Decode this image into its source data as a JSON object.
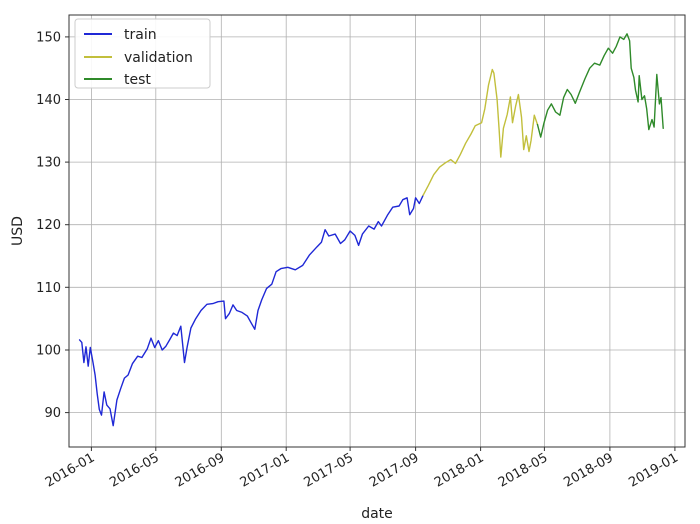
{
  "chart_data": {
    "type": "line",
    "title": "",
    "xlabel": "date",
    "ylabel": "USD",
    "x_axis_type": "date",
    "xlim": [
      "2015-11-20",
      "2019-01-20"
    ],
    "ylim": [
      84.5,
      153.5
    ],
    "grid": true,
    "legend_position": "top-left",
    "x_ticks": [
      "2016-01",
      "2016-05",
      "2016-09",
      "2017-01",
      "2017-05",
      "2017-09",
      "2018-01",
      "2018-05",
      "2018-09",
      "2019-01"
    ],
    "y_ticks": [
      90,
      100,
      110,
      120,
      130,
      140,
      150
    ],
    "series": [
      {
        "name": "train",
        "color": "#1f28d6",
        "points": [
          [
            "2015-12-10",
            101.6
          ],
          [
            "2015-12-14",
            101.2
          ],
          [
            "2015-12-18",
            98.0
          ],
          [
            "2015-12-22",
            100.5
          ],
          [
            "2015-12-26",
            97.4
          ],
          [
            "2015-12-30",
            100.4
          ],
          [
            "2016-01-04",
            98.0
          ],
          [
            "2016-01-08",
            96.0
          ],
          [
            "2016-01-12",
            93.0
          ],
          [
            "2016-01-16",
            90.5
          ],
          [
            "2016-01-20",
            89.6
          ],
          [
            "2016-01-25",
            93.3
          ],
          [
            "2016-01-30",
            91.2
          ],
          [
            "2016-02-05",
            90.6
          ],
          [
            "2016-02-11",
            87.9
          ],
          [
            "2016-02-18",
            92.0
          ],
          [
            "2016-02-25",
            93.8
          ],
          [
            "2016-03-03",
            95.5
          ],
          [
            "2016-03-10",
            96.0
          ],
          [
            "2016-03-18",
            97.8
          ],
          [
            "2016-03-28",
            99.0
          ],
          [
            "2016-04-05",
            98.8
          ],
          [
            "2016-04-15",
            100.2
          ],
          [
            "2016-04-22",
            101.9
          ],
          [
            "2016-04-29",
            100.4
          ],
          [
            "2016-05-06",
            101.5
          ],
          [
            "2016-05-13",
            100.0
          ],
          [
            "2016-05-20",
            100.6
          ],
          [
            "2016-05-27",
            101.6
          ],
          [
            "2016-06-03",
            102.7
          ],
          [
            "2016-06-10",
            102.3
          ],
          [
            "2016-06-17",
            103.8
          ],
          [
            "2016-06-24",
            98.0
          ],
          [
            "2016-06-29",
            100.5
          ],
          [
            "2016-07-06",
            103.5
          ],
          [
            "2016-07-15",
            105.0
          ],
          [
            "2016-07-25",
            106.3
          ],
          [
            "2016-08-05",
            107.3
          ],
          [
            "2016-08-16",
            107.4
          ],
          [
            "2016-08-26",
            107.7
          ],
          [
            "2016-09-06",
            107.8
          ],
          [
            "2016-09-09",
            105.0
          ],
          [
            "2016-09-16",
            105.8
          ],
          [
            "2016-09-23",
            107.2
          ],
          [
            "2016-09-30",
            106.3
          ],
          [
            "2016-10-10",
            106.0
          ],
          [
            "2016-10-20",
            105.4
          ],
          [
            "2016-10-28",
            104.2
          ],
          [
            "2016-11-03",
            103.3
          ],
          [
            "2016-11-09",
            106.3
          ],
          [
            "2016-11-16",
            108.0
          ],
          [
            "2016-11-25",
            109.8
          ],
          [
            "2016-12-05",
            110.5
          ],
          [
            "2016-12-13",
            112.5
          ],
          [
            "2016-12-22",
            113.0
          ],
          [
            "2017-01-04",
            113.2
          ],
          [
            "2017-01-18",
            112.8
          ],
          [
            "2017-02-01",
            113.5
          ],
          [
            "2017-02-14",
            115.2
          ],
          [
            "2017-02-28",
            116.5
          ],
          [
            "2017-03-08",
            117.2
          ],
          [
            "2017-03-15",
            119.2
          ],
          [
            "2017-03-22",
            118.2
          ],
          [
            "2017-04-03",
            118.5
          ],
          [
            "2017-04-13",
            117.0
          ],
          [
            "2017-04-21",
            117.6
          ],
          [
            "2017-05-01",
            119.0
          ],
          [
            "2017-05-10",
            118.3
          ],
          [
            "2017-05-17",
            116.7
          ],
          [
            "2017-05-24",
            118.5
          ],
          [
            "2017-06-05",
            119.8
          ],
          [
            "2017-06-15",
            119.3
          ],
          [
            "2017-06-23",
            120.5
          ],
          [
            "2017-06-29",
            119.8
          ],
          [
            "2017-07-10",
            121.5
          ],
          [
            "2017-07-20",
            122.8
          ],
          [
            "2017-08-01",
            123.0
          ],
          [
            "2017-08-08",
            124.0
          ],
          [
            "2017-08-16",
            124.3
          ],
          [
            "2017-08-21",
            121.6
          ],
          [
            "2017-08-28",
            122.6
          ],
          [
            "2017-09-01",
            124.3
          ],
          [
            "2017-09-08",
            123.4
          ],
          [
            "2017-09-15",
            124.7
          ]
        ]
      },
      {
        "name": "validation",
        "color": "#c2bf3c",
        "points": [
          [
            "2017-09-15",
            124.7
          ],
          [
            "2017-09-25",
            126.3
          ],
          [
            "2017-10-05",
            128.0
          ],
          [
            "2017-10-16",
            129.2
          ],
          [
            "2017-10-27",
            129.9
          ],
          [
            "2017-11-06",
            130.4
          ],
          [
            "2017-11-15",
            129.8
          ],
          [
            "2017-11-24",
            131.2
          ],
          [
            "2017-12-04",
            133.0
          ],
          [
            "2017-12-14",
            134.5
          ],
          [
            "2017-12-22",
            135.8
          ],
          [
            "2018-01-03",
            136.3
          ],
          [
            "2018-01-09",
            138.5
          ],
          [
            "2018-01-16",
            142.3
          ],
          [
            "2018-01-23",
            144.8
          ],
          [
            "2018-01-26",
            144.2
          ],
          [
            "2018-02-01",
            140.0
          ],
          [
            "2018-02-05",
            135.0
          ],
          [
            "2018-02-08",
            130.8
          ],
          [
            "2018-02-13",
            135.4
          ],
          [
            "2018-02-20",
            137.6
          ],
          [
            "2018-02-26",
            140.4
          ],
          [
            "2018-03-02",
            136.3
          ],
          [
            "2018-03-08",
            139.0
          ],
          [
            "2018-03-13",
            140.8
          ],
          [
            "2018-03-19",
            137.2
          ],
          [
            "2018-03-23",
            132.0
          ],
          [
            "2018-03-28",
            134.2
          ],
          [
            "2018-04-02",
            131.7
          ],
          [
            "2018-04-06",
            133.5
          ],
          [
            "2018-04-12",
            137.5
          ],
          [
            "2018-04-18",
            136.0
          ]
        ]
      },
      {
        "name": "test",
        "color": "#2f8a2a",
        "points": [
          [
            "2018-04-18",
            136.0
          ],
          [
            "2018-04-24",
            134.0
          ],
          [
            "2018-04-30",
            136.2
          ],
          [
            "2018-05-07",
            138.3
          ],
          [
            "2018-05-14",
            139.3
          ],
          [
            "2018-05-22",
            138.0
          ],
          [
            "2018-05-30",
            137.5
          ],
          [
            "2018-06-06",
            140.3
          ],
          [
            "2018-06-13",
            141.6
          ],
          [
            "2018-06-20",
            140.8
          ],
          [
            "2018-06-28",
            139.4
          ],
          [
            "2018-07-06",
            141.2
          ],
          [
            "2018-07-16",
            143.3
          ],
          [
            "2018-07-25",
            145.0
          ],
          [
            "2018-08-03",
            145.8
          ],
          [
            "2018-08-13",
            145.5
          ],
          [
            "2018-08-21",
            147.0
          ],
          [
            "2018-08-29",
            148.2
          ],
          [
            "2018-09-06",
            147.4
          ],
          [
            "2018-09-13",
            148.5
          ],
          [
            "2018-09-20",
            150.0
          ],
          [
            "2018-09-27",
            149.6
          ],
          [
            "2018-10-03",
            150.5
          ],
          [
            "2018-10-08",
            149.4
          ],
          [
            "2018-10-11",
            145.0
          ],
          [
            "2018-10-16",
            143.5
          ],
          [
            "2018-10-19",
            141.5
          ],
          [
            "2018-10-24",
            139.6
          ],
          [
            "2018-10-26",
            143.8
          ],
          [
            "2018-10-31",
            140.0
          ],
          [
            "2018-11-05",
            140.6
          ],
          [
            "2018-11-09",
            138.5
          ],
          [
            "2018-11-13",
            135.2
          ],
          [
            "2018-11-19",
            136.8
          ],
          [
            "2018-11-23",
            135.6
          ],
          [
            "2018-11-28",
            144.0
          ],
          [
            "2018-12-03",
            139.3
          ],
          [
            "2018-12-06",
            140.3
          ],
          [
            "2018-12-10",
            135.4
          ]
        ]
      }
    ]
  }
}
